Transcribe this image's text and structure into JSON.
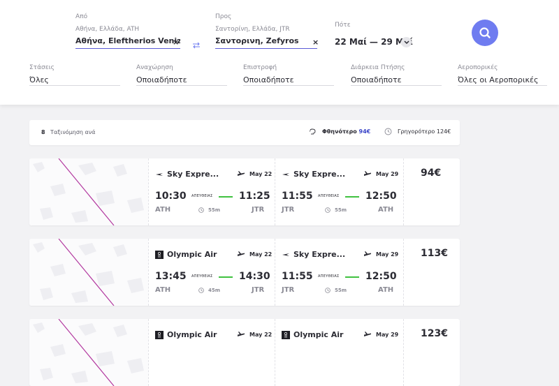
{
  "search": {
    "from_label": "Από",
    "from_sub": "Αθήνα, Ελλάδα, ATH",
    "from_value": "Αθήνα, Eleftherios Veniz...",
    "to_label": "Προς",
    "to_sub": "Σαντορίνη, Ελλάδα, JTR",
    "to_value": "Σαντορινη, Zefyros",
    "when_label": "Πότε",
    "dates": "22 Μαί — 29 Μαί",
    "clear": "×"
  },
  "filters": [
    {
      "label": "Στάσεις",
      "value": "Όλες"
    },
    {
      "label": "Αναχώρηση",
      "value": "Οποιαδήποτε"
    },
    {
      "label": "Επιστροφή",
      "value": "Οποιαδήποτε"
    },
    {
      "label": "Διάρκεια Πτήσης",
      "value": "Οποιαδήποτε"
    },
    {
      "label": "Αεροπορικές",
      "value": "Όλες οι Αεροπορικές"
    }
  ],
  "sort": {
    "count": "8",
    "label": "Ταξινόμηση ανά",
    "cheapest_label": "Φθηνότερο",
    "cheapest_price": "94€",
    "fastest_label": "Γρηγορότερο",
    "fastest_price": "124€"
  },
  "results": [
    {
      "price": "94€",
      "outbound": {
        "airline": "Sky Expre...",
        "logo": "sky-express-logo",
        "date": "May 22",
        "dep_time": "10:30",
        "arr_time": "11:25",
        "stops": "ΑΠΕΥΘΕΙΑΣ",
        "dep_code": "ATH",
        "arr_code": "JTR",
        "duration": "55m"
      },
      "inbound": {
        "airline": "Sky Expre...",
        "logo": "sky-express-logo",
        "date": "May 29",
        "dep_time": "11:55",
        "arr_time": "12:50",
        "stops": "ΑΠΕΥΘΕΙΑΣ",
        "dep_code": "JTR",
        "arr_code": "ATH",
        "duration": "55m"
      }
    },
    {
      "price": "113€",
      "outbound": {
        "airline": "Olympic Air",
        "logo": "olympic-air-logo",
        "date": "May 22",
        "dep_time": "13:45",
        "arr_time": "14:30",
        "stops": "ΑΠΕΥΘΕΙΑΣ",
        "dep_code": "ATH",
        "arr_code": "JTR",
        "duration": "45m"
      },
      "inbound": {
        "airline": "Sky Expre...",
        "logo": "sky-express-logo",
        "date": "May 29",
        "dep_time": "11:55",
        "arr_time": "12:50",
        "stops": "ΑΠΕΥΘΕΙΑΣ",
        "dep_code": "JTR",
        "arr_code": "ATH",
        "duration": "55m"
      }
    },
    {
      "price": "123€",
      "outbound": {
        "airline": "Olympic Air",
        "logo": "olympic-air-logo",
        "date": "May 22"
      },
      "inbound": {
        "airline": "Olympic Air",
        "logo": "olympic-air-logo",
        "date": "May 29"
      }
    }
  ],
  "colors": {
    "accent": "#6f7cf0",
    "cheap_price": "#3a45c8",
    "direct_line": "#3fc13f",
    "route_line": "#b33aa0"
  }
}
